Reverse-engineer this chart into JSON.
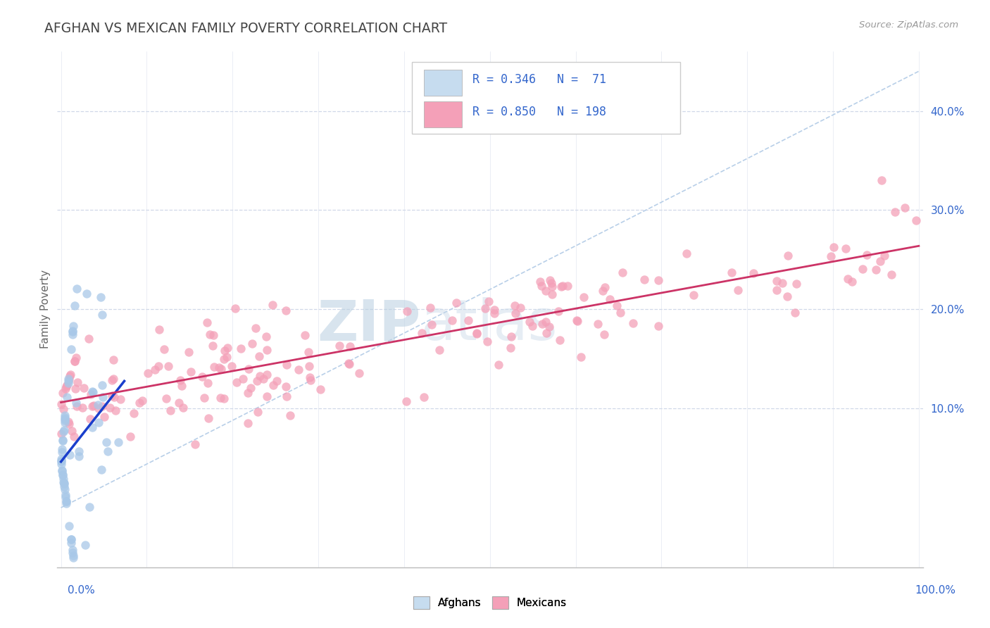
{
  "title": "AFGHAN VS MEXICAN FAMILY POVERTY CORRELATION CHART",
  "source_text": "Source: ZipAtlas.com",
  "ylabel": "Family Poverty",
  "ytick_labels": [
    "10.0%",
    "20.0%",
    "30.0%",
    "40.0%"
  ],
  "ytick_values": [
    0.1,
    0.2,
    0.3,
    0.4
  ],
  "xlim": [
    -0.005,
    1.005
  ],
  "ylim": [
    -0.06,
    0.46
  ],
  "afghan_fill": "#a8c8e8",
  "afghan_fill_light": "#c6dcef",
  "mexican_fill": "#f4a0b8",
  "reg_afghan_color": "#1a3fcc",
  "reg_mexican_color": "#cc3366",
  "ref_line_color": "#b8cfe8",
  "grid_color": "#d0d8e8",
  "watermark_color": "#ccdded",
  "title_color": "#444444",
  "legend_text_color": "#3366cc",
  "source_color": "#999999",
  "bg_color": "#ffffff",
  "R_afghan": 0.346,
  "N_afghan": 71,
  "R_mexican": 0.85,
  "N_mexican": 198
}
